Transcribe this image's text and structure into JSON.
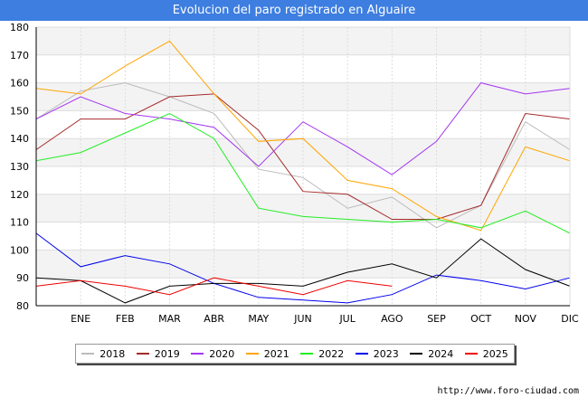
{
  "chart_data": {
    "type": "line",
    "title": "Evolucion del paro registrado en Alguaire",
    "categories": [
      "",
      "ENE",
      "FEB",
      "MAR",
      "ABR",
      "MAY",
      "JUN",
      "JUL",
      "AGO",
      "SEP",
      "OCT",
      "NOV",
      "DIC"
    ],
    "ylim": [
      80,
      180
    ],
    "yticks": [
      80,
      90,
      100,
      110,
      120,
      130,
      140,
      150,
      160,
      170,
      180
    ],
    "series": [
      {
        "name": "2018",
        "color": "#bbbbbb",
        "values": [
          147,
          157,
          160,
          155,
          149,
          129,
          126,
          115,
          119,
          108,
          116,
          146,
          136
        ]
      },
      {
        "name": "2019",
        "color": "#a52a2a",
        "values": [
          136,
          147,
          147,
          155,
          156,
          143,
          121,
          120,
          111,
          111,
          116,
          149,
          147
        ]
      },
      {
        "name": "2020",
        "color": "#a335f0",
        "values": [
          147,
          155,
          149,
          147,
          144,
          130,
          146,
          137,
          127,
          139,
          160,
          156,
          158
        ]
      },
      {
        "name": "2021",
        "color": "#ffa500",
        "values": [
          158,
          156,
          166,
          175,
          156,
          139,
          140,
          125,
          122,
          112,
          107,
          137,
          132
        ]
      },
      {
        "name": "2022",
        "color": "#22ee22",
        "values": [
          132,
          135,
          142,
          149,
          140,
          115,
          112,
          111,
          110,
          111,
          108,
          114,
          106
        ]
      },
      {
        "name": "2023",
        "color": "#0000ee",
        "values": [
          106,
          94,
          98,
          95,
          88,
          83,
          82,
          81,
          84,
          91,
          89,
          86,
          90
        ]
      },
      {
        "name": "2024",
        "color": "#000000",
        "values": [
          90,
          89,
          81,
          87,
          88,
          88,
          87,
          92,
          95,
          90,
          104,
          93,
          87
        ]
      },
      {
        "name": "2025",
        "color": "#ee0000",
        "values": [
          87,
          89,
          87,
          84,
          90,
          87,
          84,
          89,
          87,
          null,
          null,
          null,
          null
        ]
      }
    ]
  },
  "footer": {
    "url": "http://www.foro-ciudad.com"
  }
}
